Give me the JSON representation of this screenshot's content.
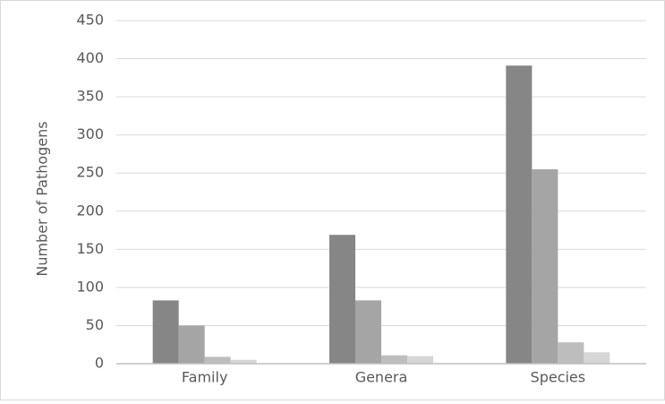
{
  "chart_data": {
    "type": "bar",
    "y_label": "Number of Pathogens",
    "categories": [
      "Family",
      "Genera",
      "Species"
    ],
    "series": [
      {
        "color": "#868686",
        "values": [
          83,
          169,
          391
        ]
      },
      {
        "color": "#a5a5a5",
        "values": [
          50,
          83,
          255
        ]
      },
      {
        "color": "#bdbdbd",
        "values": [
          9,
          11,
          28
        ]
      },
      {
        "color": "#d6d6d6",
        "values": [
          5,
          10,
          15
        ]
      }
    ],
    "ylim": [
      0,
      450
    ],
    "yticks": [
      0,
      50,
      100,
      150,
      200,
      250,
      300,
      350,
      400,
      450
    ],
    "grid": true
  }
}
